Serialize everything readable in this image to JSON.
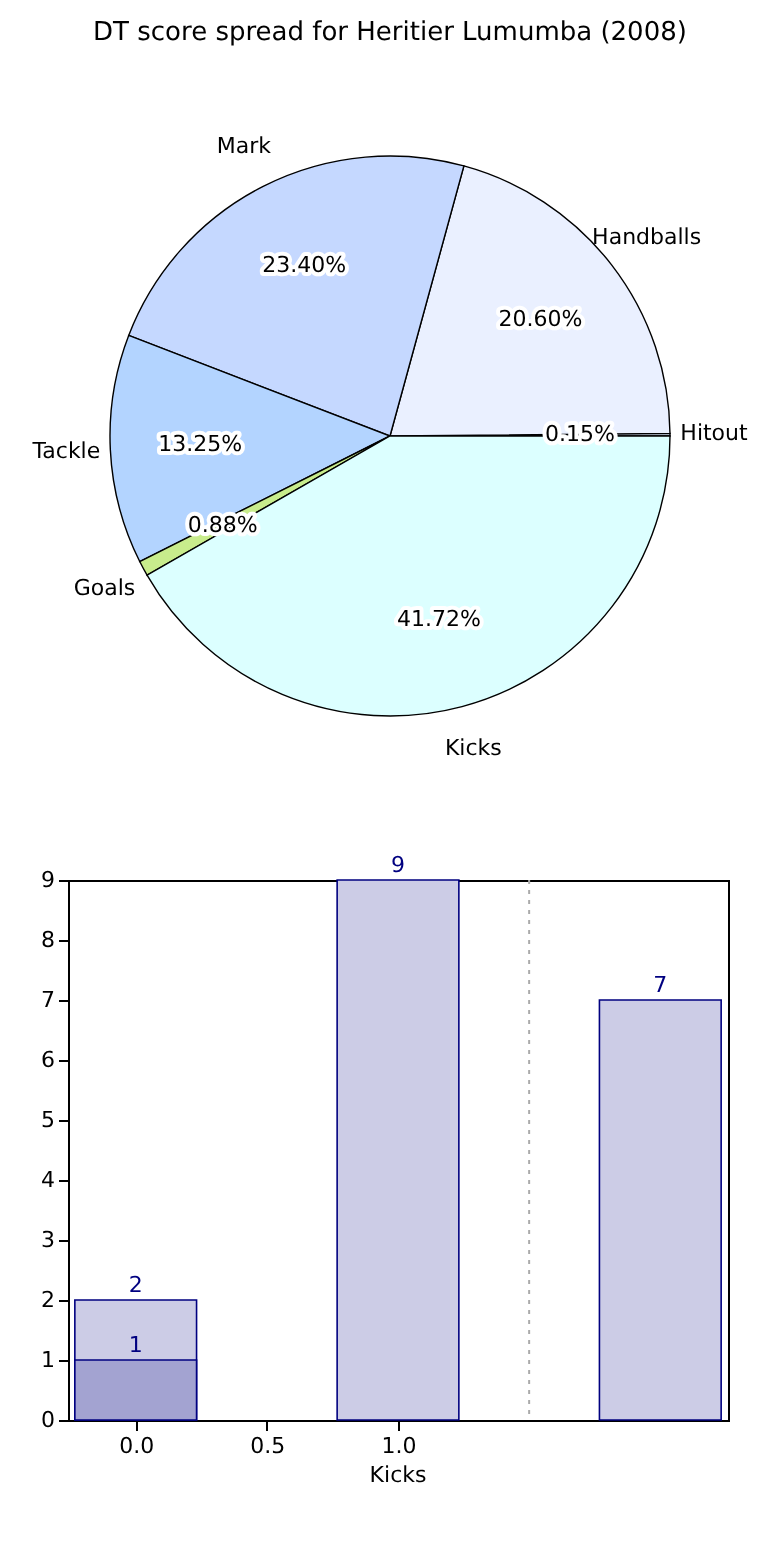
{
  "chart_data": [
    {
      "type": "pie",
      "title": "DT score spread for Heritier Lumumba (2008)",
      "categories": [
        "Hitout",
        "Handballs",
        "Mark",
        "Tackle",
        "Goals",
        "Kicks"
      ],
      "values": [
        0.15,
        20.6,
        23.4,
        13.25,
        0.88,
        41.72
      ],
      "value_labels": [
        "0.15%",
        "20.60%",
        "23.40%",
        "13.25%",
        "0.88%",
        "41.72%"
      ],
      "colors": [
        "#e0ecff",
        "#eaf0ff",
        "#c5d8ff",
        "#b3d4ff",
        "#c8ec8c",
        "#dcffff"
      ]
    },
    {
      "type": "bar",
      "x": [
        0,
        1,
        2
      ],
      "series": [
        {
          "color": "#cccce6",
          "values": [
            2,
            9,
            7
          ]
        },
        {
          "color": "#a3a3d1",
          "values": [
            1,
            null,
            null
          ]
        }
      ],
      "xlim": [
        -0.22,
        2.22
      ],
      "xticks": [
        {
          "value": 0,
          "label": "0.0"
        },
        0.5,
        {
          "value": 1,
          "label": "1.0"
        }
      ],
      "ylim": [
        0,
        9
      ],
      "yticks": [
        0,
        1,
        2,
        3,
        4,
        5,
        6,
        7,
        8,
        9
      ],
      "ref_lines": [
        {
          "axis": "x",
          "value": 1.5,
          "color": "#aaaaaa",
          "line_style": "dotted"
        }
      ],
      "data_labels": true,
      "annotations": [
        "Kicks"
      ]
    }
  ]
}
